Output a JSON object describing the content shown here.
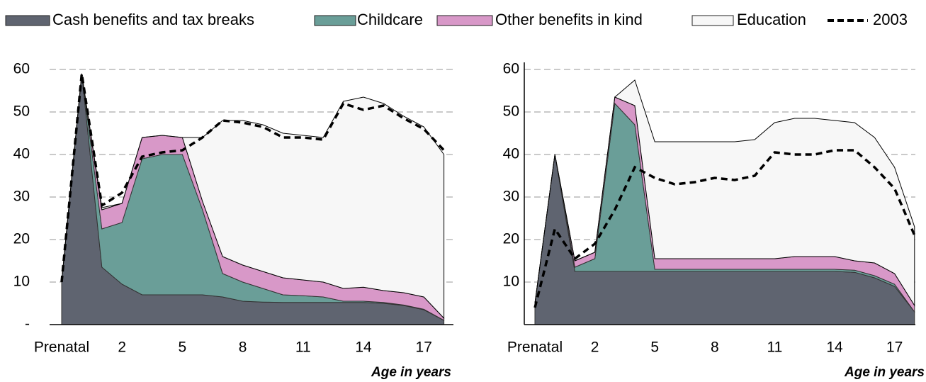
{
  "chart_data": [
    {
      "type": "stacked_area",
      "categories": [
        "Prenatal",
        null,
        null,
        "2",
        null,
        null,
        "5",
        null,
        null,
        "8",
        null,
        null,
        "11",
        null,
        null,
        "14",
        null,
        null,
        "17",
        null
      ],
      "x_label": "Age in years",
      "ylim": [
        0,
        60
      ],
      "yticks": [
        {
          "value": 0,
          "label": "-"
        },
        10,
        20,
        30,
        40,
        50,
        60
      ],
      "grid": true,
      "series": [
        {
          "name": "Cash benefits and tax breaks",
          "color": "#5f6470",
          "values": [
            10,
            59,
            13.5,
            9.5,
            7,
            7,
            7,
            7,
            6.5,
            5.5,
            5.3,
            5.2,
            5.2,
            5.2,
            5.2,
            5.2,
            5,
            4.5,
            3.5,
            1
          ]
        },
        {
          "name": "Childcare",
          "color": "#6a9e98",
          "values": [
            0,
            0,
            9,
            14.5,
            32,
            33,
            33,
            20,
            5.5,
            4.5,
            3.2,
            1.8,
            1.6,
            1.3,
            0.3,
            0.3,
            0.2,
            0.1,
            0.1,
            0
          ]
        },
        {
          "name": "Other benefits in kind",
          "color": "#d898c8",
          "values": [
            0,
            0,
            4.5,
            4.5,
            5,
            4.5,
            4,
            2,
            4,
            4,
            4,
            4,
            3.7,
            3.5,
            3,
            3.3,
            2.8,
            2.9,
            2.9,
            0.5
          ]
        },
        {
          "name": "Education",
          "color": "#f7f7f7",
          "values": [
            0,
            0,
            0.5,
            0,
            0,
            0,
            0,
            15,
            32,
            34,
            34.5,
            34,
            34,
            34,
            44,
            44.7,
            44,
            41.5,
            40,
            38.5
          ]
        },
        {
          "name": "2003",
          "type": "line",
          "color": "#000000",
          "dashed": true,
          "values": [
            10,
            59,
            28,
            31,
            39.5,
            40.5,
            41,
            44,
            48,
            47.5,
            46.5,
            44,
            44,
            43.5,
            52,
            50.5,
            51.5,
            48.5,
            46,
            41
          ]
        }
      ]
    },
    {
      "type": "stacked_area",
      "categories": [
        "Prenatal",
        null,
        null,
        "2",
        null,
        null,
        "5",
        null,
        null,
        "8",
        null,
        null,
        "11",
        null,
        null,
        "14",
        null,
        null,
        "17",
        null
      ],
      "x_label": "Age in years",
      "ylim": [
        0,
        60
      ],
      "yticks": [
        10,
        20,
        30,
        40,
        50,
        60
      ],
      "grid": true,
      "series": [
        {
          "name": "Cash benefits and tax breaks",
          "color": "#5f6470",
          "values": [
            5,
            40,
            12.5,
            12.5,
            12.5,
            12.5,
            12.5,
            12.5,
            12.5,
            12.5,
            12.5,
            12.5,
            12.5,
            12.5,
            12.5,
            12.5,
            12.3,
            11,
            9,
            3
          ]
        },
        {
          "name": "Childcare",
          "color": "#6a9e98",
          "values": [
            0,
            0,
            1,
            3,
            39.5,
            34.5,
            0.5,
            0.5,
            0.5,
            0.5,
            0.5,
            0.5,
            0.5,
            0.5,
            0.5,
            0.5,
            0.5,
            0.5,
            0.5,
            0
          ]
        },
        {
          "name": "Other benefits in kind",
          "color": "#d898c8",
          "values": [
            0,
            0,
            1.5,
            1.5,
            1.5,
            4.5,
            2.5,
            2.5,
            2.5,
            2.5,
            2.5,
            2.5,
            2.5,
            3,
            3,
            3,
            2.2,
            3,
            2.5,
            1.5
          ]
        },
        {
          "name": "Education",
          "color": "#f7f7f7",
          "values": [
            0,
            0,
            0,
            0,
            0,
            6,
            27.5,
            27.5,
            27.5,
            27.5,
            27.5,
            28,
            32,
            32.5,
            32.5,
            32,
            32.5,
            29.5,
            25,
            18.5
          ]
        },
        {
          "name": "2003",
          "type": "line",
          "color": "#000000",
          "dashed": true,
          "values": [
            4,
            22.5,
            15.5,
            19,
            27,
            37,
            34.5,
            33,
            33.5,
            34.5,
            34,
            35,
            40.5,
            40,
            40,
            41,
            41,
            37,
            32,
            21
          ]
        }
      ]
    }
  ]
}
